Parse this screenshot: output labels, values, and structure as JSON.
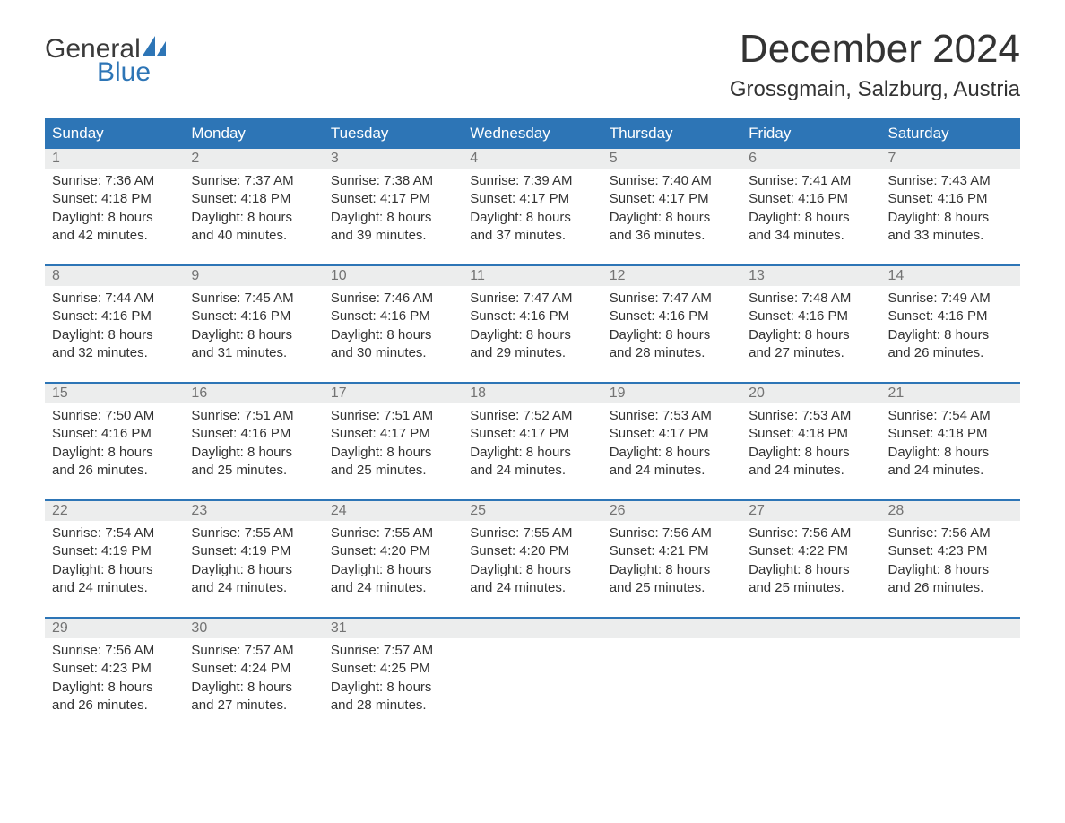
{
  "brand": {
    "word1": "General",
    "word2": "Blue",
    "sail_color": "#2d75b6",
    "text_color": "#3a3a3a"
  },
  "title": "December 2024",
  "location": "Grossgmain, Salzburg, Austria",
  "colors": {
    "header_bg": "#2d75b6",
    "header_text": "#ffffff",
    "daynum_bg": "#eceded",
    "daynum_text": "#737373",
    "body_text": "#333333",
    "rule": "#2d75b6",
    "page_bg": "#ffffff"
  },
  "weekdays": [
    "Sunday",
    "Monday",
    "Tuesday",
    "Wednesday",
    "Thursday",
    "Friday",
    "Saturday"
  ],
  "weeks": [
    [
      {
        "n": "1",
        "sr": "7:36 AM",
        "ss": "4:18 PM",
        "dl": "8 hours",
        "dm": "and 42 minutes."
      },
      {
        "n": "2",
        "sr": "7:37 AM",
        "ss": "4:18 PM",
        "dl": "8 hours",
        "dm": "and 40 minutes."
      },
      {
        "n": "3",
        "sr": "7:38 AM",
        "ss": "4:17 PM",
        "dl": "8 hours",
        "dm": "and 39 minutes."
      },
      {
        "n": "4",
        "sr": "7:39 AM",
        "ss": "4:17 PM",
        "dl": "8 hours",
        "dm": "and 37 minutes."
      },
      {
        "n": "5",
        "sr": "7:40 AM",
        "ss": "4:17 PM",
        "dl": "8 hours",
        "dm": "and 36 minutes."
      },
      {
        "n": "6",
        "sr": "7:41 AM",
        "ss": "4:16 PM",
        "dl": "8 hours",
        "dm": "and 34 minutes."
      },
      {
        "n": "7",
        "sr": "7:43 AM",
        "ss": "4:16 PM",
        "dl": "8 hours",
        "dm": "and 33 minutes."
      }
    ],
    [
      {
        "n": "8",
        "sr": "7:44 AM",
        "ss": "4:16 PM",
        "dl": "8 hours",
        "dm": "and 32 minutes."
      },
      {
        "n": "9",
        "sr": "7:45 AM",
        "ss": "4:16 PM",
        "dl": "8 hours",
        "dm": "and 31 minutes."
      },
      {
        "n": "10",
        "sr": "7:46 AM",
        "ss": "4:16 PM",
        "dl": "8 hours",
        "dm": "and 30 minutes."
      },
      {
        "n": "11",
        "sr": "7:47 AM",
        "ss": "4:16 PM",
        "dl": "8 hours",
        "dm": "and 29 minutes."
      },
      {
        "n": "12",
        "sr": "7:47 AM",
        "ss": "4:16 PM",
        "dl": "8 hours",
        "dm": "and 28 minutes."
      },
      {
        "n": "13",
        "sr": "7:48 AM",
        "ss": "4:16 PM",
        "dl": "8 hours",
        "dm": "and 27 minutes."
      },
      {
        "n": "14",
        "sr": "7:49 AM",
        "ss": "4:16 PM",
        "dl": "8 hours",
        "dm": "and 26 minutes."
      }
    ],
    [
      {
        "n": "15",
        "sr": "7:50 AM",
        "ss": "4:16 PM",
        "dl": "8 hours",
        "dm": "and 26 minutes."
      },
      {
        "n": "16",
        "sr": "7:51 AM",
        "ss": "4:16 PM",
        "dl": "8 hours",
        "dm": "and 25 minutes."
      },
      {
        "n": "17",
        "sr": "7:51 AM",
        "ss": "4:17 PM",
        "dl": "8 hours",
        "dm": "and 25 minutes."
      },
      {
        "n": "18",
        "sr": "7:52 AM",
        "ss": "4:17 PM",
        "dl": "8 hours",
        "dm": "and 24 minutes."
      },
      {
        "n": "19",
        "sr": "7:53 AM",
        "ss": "4:17 PM",
        "dl": "8 hours",
        "dm": "and 24 minutes."
      },
      {
        "n": "20",
        "sr": "7:53 AM",
        "ss": "4:18 PM",
        "dl": "8 hours",
        "dm": "and 24 minutes."
      },
      {
        "n": "21",
        "sr": "7:54 AM",
        "ss": "4:18 PM",
        "dl": "8 hours",
        "dm": "and 24 minutes."
      }
    ],
    [
      {
        "n": "22",
        "sr": "7:54 AM",
        "ss": "4:19 PM",
        "dl": "8 hours",
        "dm": "and 24 minutes."
      },
      {
        "n": "23",
        "sr": "7:55 AM",
        "ss": "4:19 PM",
        "dl": "8 hours",
        "dm": "and 24 minutes."
      },
      {
        "n": "24",
        "sr": "7:55 AM",
        "ss": "4:20 PM",
        "dl": "8 hours",
        "dm": "and 24 minutes."
      },
      {
        "n": "25",
        "sr": "7:55 AM",
        "ss": "4:20 PM",
        "dl": "8 hours",
        "dm": "and 24 minutes."
      },
      {
        "n": "26",
        "sr": "7:56 AM",
        "ss": "4:21 PM",
        "dl": "8 hours",
        "dm": "and 25 minutes."
      },
      {
        "n": "27",
        "sr": "7:56 AM",
        "ss": "4:22 PM",
        "dl": "8 hours",
        "dm": "and 25 minutes."
      },
      {
        "n": "28",
        "sr": "7:56 AM",
        "ss": "4:23 PM",
        "dl": "8 hours",
        "dm": "and 26 minutes."
      }
    ],
    [
      {
        "n": "29",
        "sr": "7:56 AM",
        "ss": "4:23 PM",
        "dl": "8 hours",
        "dm": "and 26 minutes."
      },
      {
        "n": "30",
        "sr": "7:57 AM",
        "ss": "4:24 PM",
        "dl": "8 hours",
        "dm": "and 27 minutes."
      },
      {
        "n": "31",
        "sr": "7:57 AM",
        "ss": "4:25 PM",
        "dl": "8 hours",
        "dm": "and 28 minutes."
      },
      null,
      null,
      null,
      null
    ]
  ],
  "labels": {
    "sunrise": "Sunrise: ",
    "sunset": "Sunset: ",
    "daylight": "Daylight: "
  }
}
